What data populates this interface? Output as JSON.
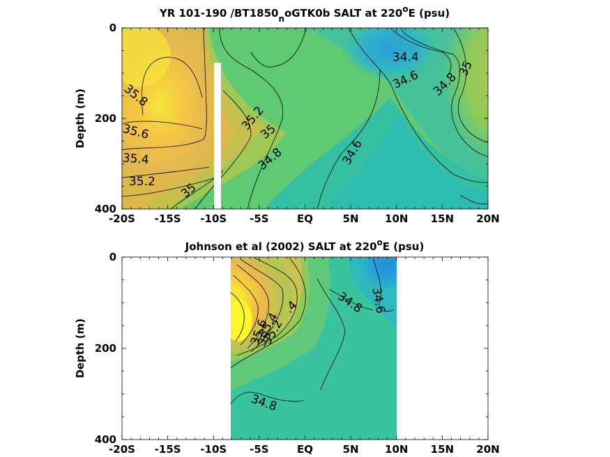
{
  "chart_data": [
    {
      "type": "heatmap",
      "title": "YR 101-190 /BT1850",
      "title_sub": "n",
      "title_rest": "oGTK0b SALT at 220",
      "title_sup": "o",
      "title_end": "E (psu)",
      "ylabel": "Depth (m)",
      "xlim": [
        -20,
        20
      ],
      "ylim": [
        400,
        0
      ],
      "x_ticks": [
        "-20S",
        "-15S",
        "-10S",
        "-5S",
        "EQ",
        "5N",
        "10N",
        "15N",
        "20N"
      ],
      "x_tick_values": [
        -20,
        -15,
        -10,
        -5,
        0,
        5,
        10,
        15,
        20
      ],
      "y_ticks": [
        "0",
        "200",
        "400"
      ],
      "y_tick_values": [
        0,
        200,
        400
      ],
      "data_gap": {
        "x_from": -10.2,
        "x_to": -9.5,
        "depth_from": 80,
        "depth_to": 400
      },
      "contour_labels": [
        {
          "text": "35.8",
          "x": -18.5,
          "depth": 150
        },
        {
          "text": "35.6",
          "x": -18.5,
          "depth": 230
        },
        {
          "text": "35.4",
          "x": -18.5,
          "depth": 290
        },
        {
          "text": "35.2",
          "x": -17.8,
          "depth": 340
        },
        {
          "text": "35",
          "x": -12.7,
          "depth": 360
        },
        {
          "text": "35.2",
          "x": -5.7,
          "depth": 200
        },
        {
          "text": "35",
          "x": -4.0,
          "depth": 230
        },
        {
          "text": "34.8",
          "x": -3.8,
          "depth": 290
        },
        {
          "text": "34.6",
          "x": 5.2,
          "depth": 275
        },
        {
          "text": "34.4",
          "x": 11.0,
          "depth": 65
        },
        {
          "text": "34.6",
          "x": 11.0,
          "depth": 115
        },
        {
          "text": "34.8",
          "x": 15.3,
          "depth": 125
        },
        {
          "text": "35",
          "x": 17.6,
          "depth": 90
        }
      ]
    },
    {
      "type": "heatmap",
      "title": "Johnson et al (2002) SALT at 220",
      "title_sup": "o",
      "title_end": "E (psu)",
      "ylabel": "Depth (m)",
      "xlim": [
        -20,
        20
      ],
      "ylim": [
        400,
        0
      ],
      "x_ticks": [
        "-20S",
        "-15S",
        "-10S",
        "-5S",
        "EQ",
        "5N",
        "10N",
        "15N",
        "20N"
      ],
      "x_tick_values": [
        -20,
        -15,
        -10,
        -5,
        0,
        5,
        10,
        15,
        20
      ],
      "y_ticks": [
        "0",
        "200",
        "400"
      ],
      "y_tick_values": [
        0,
        200,
        400
      ],
      "data_x_range": [
        -8,
        10
      ],
      "contour_labels": [
        {
          "text": "35.6",
          "x": -5.0,
          "depth": 165
        },
        {
          "text": "35.4",
          "x": -4.0,
          "depth": 150
        },
        {
          "text": "35.2",
          "x": -3.5,
          "depth": 165
        },
        {
          "text": "35",
          "x": -4.4,
          "depth": 180
        },
        {
          "text": ".4",
          "x": -1.5,
          "depth": 110
        },
        {
          "text": "34.8",
          "x": 4.9,
          "depth": 100
        },
        {
          "text": "34.6",
          "x": 8.0,
          "depth": 95
        },
        {
          "text": "34.8",
          "x": -4.5,
          "depth": 320
        }
      ]
    }
  ]
}
